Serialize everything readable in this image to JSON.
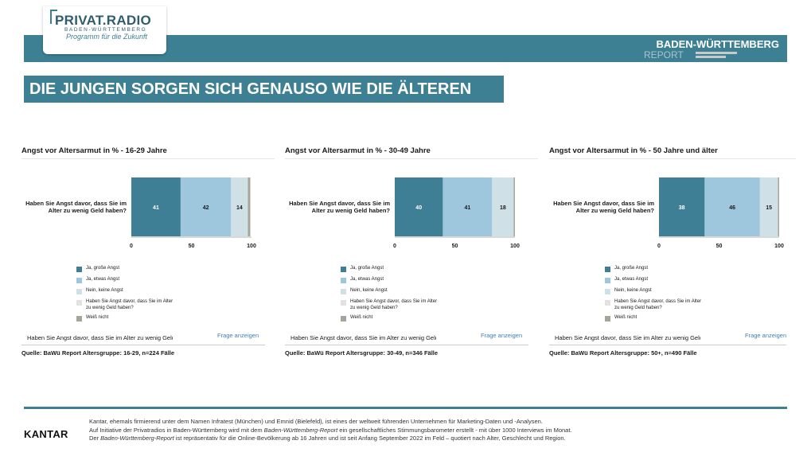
{
  "brand": {
    "logo_title": "PRIVAT.RADIO",
    "logo_sub": "BADEN-WÜRTTEMBERG",
    "logo_tagline": "Programm für die Zukunft",
    "report_title": "BADEN-WÜRTTEMBERG",
    "report_sub": "REPORT"
  },
  "headline": "DIE JUNGEN SORGEN SICH GENAUSO WIE DIE ÄLTEREN",
  "colors": {
    "accent": "#3d7f93",
    "ja_grosse_angst": "#3f7f96",
    "ja_etwas_angst": "#9ec7de",
    "nein_keine_angst": "#cfe0e7",
    "question_text": "#e2e2e2",
    "weiss_nicht": "#a7a59a"
  },
  "legend": [
    "Ja, große Angst",
    "Ja, etwas Angst",
    "Nein, keine Angst",
    "Haben Sie Angst davor, dass Sie im Alter\nzu wenig Geld haben?",
    "Weiß nicht"
  ],
  "question_full": "Haben Sie Angst davor, dass Sie im Alter zu wenig Geld haben?",
  "question_truncated": "Haben Sie Angst davor, dass Sie im Alter zu wenig Geld haben?",
  "frage_link": "Frage anzeigen",
  "chart_data": [
    {
      "type": "bar",
      "orientation": "horizontal-stacked",
      "title": "Angst vor Altersarmut in % - 16-29 Jahre",
      "categories": [
        "Haben Sie Angst davor, dass Sie im Alter zu wenig Geld haben?"
      ],
      "series": [
        {
          "name": "Ja, große Angst",
          "values": [
            41
          ]
        },
        {
          "name": "Ja, etwas Angst",
          "values": [
            42
          ]
        },
        {
          "name": "Nein, keine Angst",
          "values": [
            14
          ]
        },
        {
          "name": "Weiß nicht",
          "values": [
            2
          ]
        }
      ],
      "xlim": [
        0,
        100
      ],
      "xticks": [
        0,
        50,
        100
      ],
      "source": "Quelle: BaWü Report Altersgruppe: 16-29, n=224 Fälle"
    },
    {
      "type": "bar",
      "orientation": "horizontal-stacked",
      "title": "Angst vor Altersarmut in % - 30-49 Jahre",
      "categories": [
        "Haben Sie Angst davor, dass Sie im Alter zu wenig Geld haben?"
      ],
      "series": [
        {
          "name": "Ja, große Angst",
          "values": [
            40
          ]
        },
        {
          "name": "Ja, etwas Angst",
          "values": [
            41
          ]
        },
        {
          "name": "Nein, keine Angst",
          "values": [
            18
          ]
        },
        {
          "name": "Weiß nicht",
          "values": [
            1
          ]
        }
      ],
      "xlim": [
        0,
        100
      ],
      "xticks": [
        0,
        50,
        100
      ],
      "source": "Quelle: BaWü Report Altersgruppe: 30-49, n=346 Fälle"
    },
    {
      "type": "bar",
      "orientation": "horizontal-stacked",
      "title": "Angst vor Altersarmut in % - 50 Jahre und älter",
      "categories": [
        "Haben Sie Angst davor, dass Sie im Alter zu wenig Geld haben?"
      ],
      "series": [
        {
          "name": "Ja, große Angst",
          "values": [
            38
          ]
        },
        {
          "name": "Ja, etwas Angst",
          "values": [
            46
          ]
        },
        {
          "name": "Nein, keine Angst",
          "values": [
            15
          ]
        },
        {
          "name": "Weiß nicht",
          "values": [
            1
          ]
        }
      ],
      "xlim": [
        0,
        100
      ],
      "xticks": [
        0,
        50,
        100
      ],
      "source": "Quelle: BaWü Report Altersgruppe: 50+, n=490 Fälle"
    }
  ],
  "footer": {
    "kantar_logo": "KANTAR",
    "line1": "Kantar, ehemals firmierend unter dem Namen Infratest (München) und Emnid  (Bielefeld), ist eines der weltweit führenden Unternehmen für Marketing-Daten und -Analysen.",
    "line2_a": "Auf Initiative der Privatradios in  Baden-Württemberg wird mit dem ",
    "line2_em": "Baden-Württemberg-Report",
    "line2_b": " ein gesellschaftliches Stimmungsbarometer erstellt - mit über 1000 Interviews im Monat.",
    "line3_a": "Der ",
    "line3_em": "Baden-Württemberg-Report",
    "line3_b": " ist repräsentativ für die Online-Bevölkerung ab 16 Jahren und ist seit Anfang September 2022 im Feld – quotiert nach Alter, Geschlecht und Region."
  }
}
